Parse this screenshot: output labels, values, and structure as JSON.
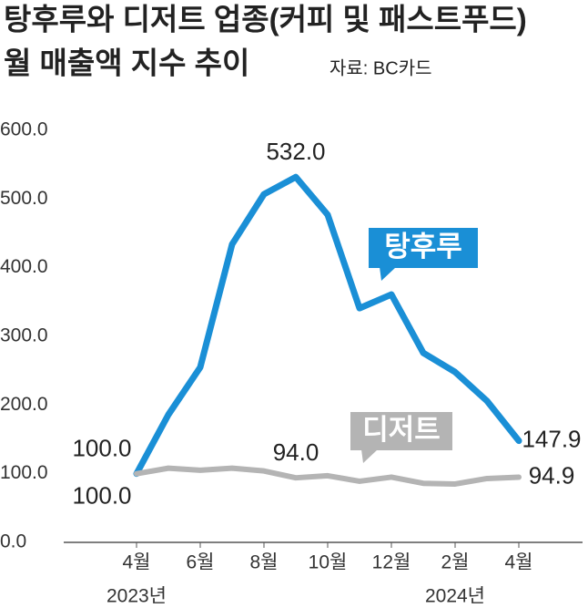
{
  "chart_data": {
    "type": "line",
    "title": "탕후루와 디저트 업종(커피 및 패스트푸드)",
    "subtitle": "월 매출액 지수 추이",
    "source": "자료: BC카드",
    "categories": [
      "4월",
      null,
      "6월",
      null,
      "8월",
      null,
      "10월",
      null,
      "12월",
      null,
      "2월",
      null,
      "4월"
    ],
    "year_labels": [
      "2023년",
      "2024년"
    ],
    "series": [
      {
        "name": "탕후루",
        "color": "#1a8fd6",
        "values": [
          100.0,
          186,
          255,
          434,
          507,
          532.0,
          477,
          341,
          361,
          276,
          248,
          206,
          147.9
        ],
        "value_labels": [
          "100.0",
          null,
          null,
          null,
          null,
          "532.0",
          null,
          null,
          null,
          null,
          null,
          null,
          "147.9"
        ]
      },
      {
        "name": "디저트",
        "color": "#b4b4b4",
        "values": [
          100.0,
          108,
          105,
          108,
          104,
          94.0,
          97,
          89,
          95,
          86,
          85,
          93,
          94.9
        ],
        "value_labels": [
          "100.0",
          null,
          null,
          null,
          null,
          "94.0",
          null,
          null,
          null,
          null,
          null,
          null,
          "94.9"
        ]
      }
    ],
    "ylim": [
      0,
      600
    ],
    "yticks": [
      {
        "value": 0,
        "label": "0.0"
      },
      {
        "value": 100,
        "label": "100.0"
      },
      {
        "value": 200,
        "label": "200.0"
      },
      {
        "value": 300,
        "label": "300.0"
      },
      {
        "value": 400,
        "label": "400.0"
      },
      {
        "value": 500,
        "label": "500.0"
      },
      {
        "value": 600,
        "label": "600.0"
      }
    ]
  }
}
